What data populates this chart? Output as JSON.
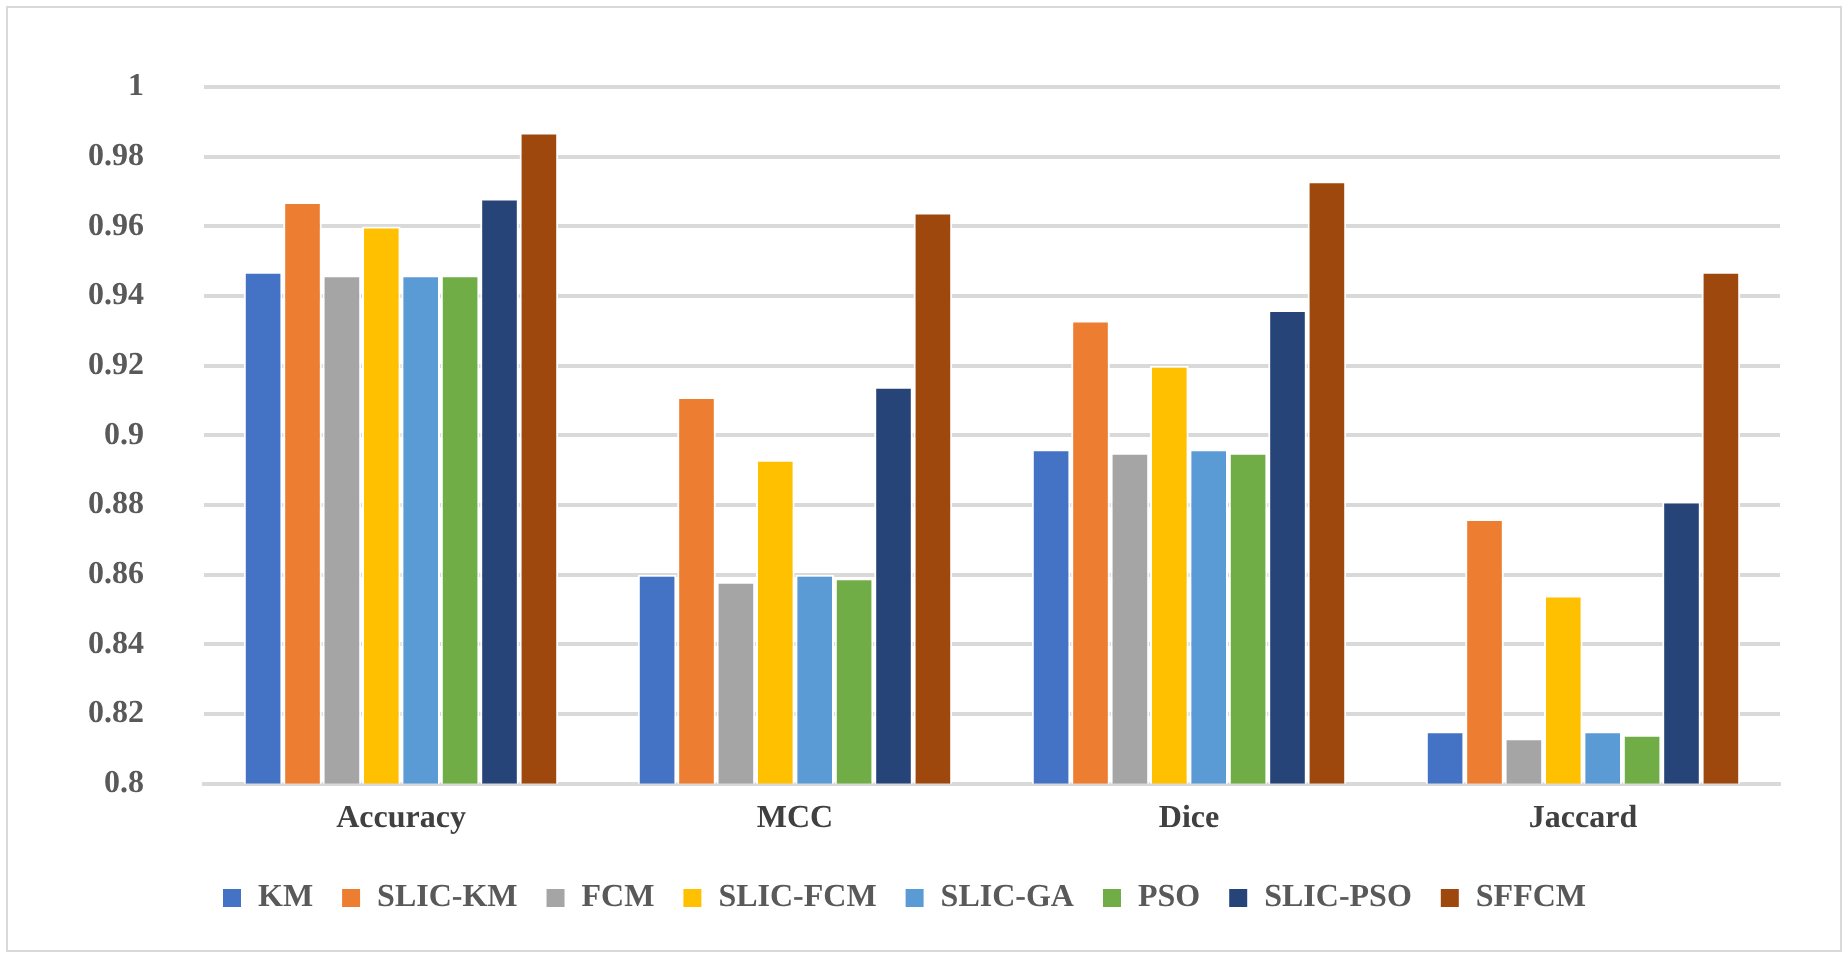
{
  "chart_data": {
    "type": "bar",
    "categories": [
      "Accuracy",
      "MCC",
      "Dice",
      "Jaccard"
    ],
    "series": [
      {
        "name": "KM",
        "color": "#4472c4",
        "values": [
          0.947,
          0.86,
          0.896,
          0.815
        ]
      },
      {
        "name": "SLIC-KM",
        "color": "#ed7d31",
        "values": [
          0.967,
          0.911,
          0.933,
          0.876
        ]
      },
      {
        "name": "FCM",
        "color": "#a5a5a5",
        "values": [
          0.946,
          0.858,
          0.895,
          0.813
        ]
      },
      {
        "name": "SLIC-FCM",
        "color": "#ffc000",
        "values": [
          0.96,
          0.893,
          0.92,
          0.854
        ]
      },
      {
        "name": "SLIC-GA",
        "color": "#5b9bd5",
        "values": [
          0.946,
          0.86,
          0.896,
          0.815
        ]
      },
      {
        "name": "PSO",
        "color": "#70ad47",
        "values": [
          0.946,
          0.859,
          0.895,
          0.814
        ]
      },
      {
        "name": "SLIC-PSO",
        "color": "#264478",
        "values": [
          0.968,
          0.914,
          0.936,
          0.881
        ]
      },
      {
        "name": "SFFCM",
        "color": "#9e480e",
        "values": [
          0.987,
          0.964,
          0.973,
          0.947
        ]
      }
    ],
    "ylim": [
      0.8,
      1
    ],
    "yticks": [
      0.8,
      0.82,
      0.84,
      0.86,
      0.88,
      0.9,
      0.92,
      0.94,
      0.96,
      0.98,
      1
    ],
    "grid": "y",
    "legend": "bottom"
  }
}
